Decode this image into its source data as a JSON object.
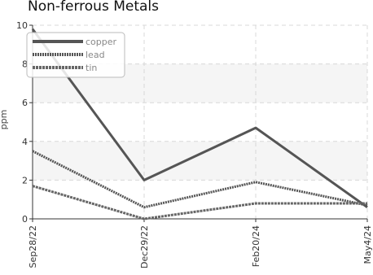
{
  "chart_data": {
    "type": "line",
    "title": "Non-ferrous Metals",
    "ylabel": "ppm",
    "xlabel": "",
    "categories": [
      "Sep28/22",
      "Dec29/22",
      "Feb20/24",
      "May4/24"
    ],
    "ylim": [
      0,
      10
    ],
    "yticks": [
      0,
      2,
      4,
      6,
      8,
      10
    ],
    "grid": true,
    "legend_position": "top-left",
    "series": [
      {
        "name": "copper",
        "values": [
          9.8,
          2.0,
          4.7,
          0.6
        ],
        "color": "#555555",
        "style": "solid"
      },
      {
        "name": "lead",
        "values": [
          3.5,
          0.6,
          1.9,
          0.7
        ],
        "color": "#555555",
        "style": "dotted"
      },
      {
        "name": "tin",
        "values": [
          1.7,
          0.0,
          0.8,
          0.8
        ],
        "color": "#666666",
        "style": "dashed"
      }
    ]
  }
}
